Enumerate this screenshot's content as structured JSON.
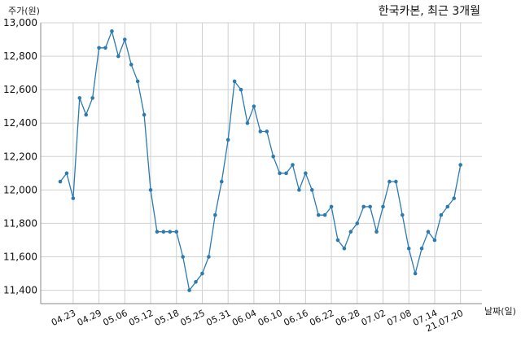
{
  "chart_data": {
    "type": "line",
    "title": "한국카본, 최근 3개월",
    "ylabel": "주가(원)",
    "xlabel": "날짜(일)",
    "ylim": [
      11320,
      13000
    ],
    "yticks": [
      "11,400",
      "11,600",
      "11,800",
      "12,000",
      "12,200",
      "12,400",
      "12,600",
      "12,800",
      "13,000"
    ],
    "ytick_values": [
      11400,
      11600,
      11800,
      12000,
      12200,
      12400,
      12600,
      12800,
      13000
    ],
    "xtick_labels": [
      "04.23",
      "04.29",
      "05.06",
      "05.12",
      "05.18",
      "05.25",
      "05.31",
      "06.04",
      "06.10",
      "06.16",
      "06.22",
      "06.28",
      "07.02",
      "07.08",
      "07.14",
      "21.07.20"
    ],
    "xtick_indices": [
      2,
      6,
      10,
      14,
      18,
      22,
      26,
      30,
      34,
      38,
      42,
      46,
      50,
      54,
      58,
      62
    ],
    "grid": true,
    "line_color": "#2b7bb1",
    "series": [
      {
        "values": [
          12050,
          12100,
          11950,
          12550,
          12450,
          12550,
          12850,
          12850,
          12950,
          12800,
          12900,
          12750,
          12650,
          12450,
          12000,
          11750,
          11750,
          11750,
          11750,
          11600,
          11400,
          11450,
          11500,
          11600,
          11850,
          12050,
          12300,
          12650,
          12600,
          12400,
          12500,
          12350,
          12350,
          12200,
          12100,
          12100,
          12150,
          12000,
          12100,
          12000,
          11850,
          11850,
          11900,
          11700,
          11650,
          11750,
          11800,
          11900,
          11900,
          11750,
          11900,
          12050,
          12050,
          11850,
          11650,
          11500,
          11650,
          11750,
          11700,
          11850,
          11900,
          11950,
          12150
        ]
      }
    ]
  }
}
